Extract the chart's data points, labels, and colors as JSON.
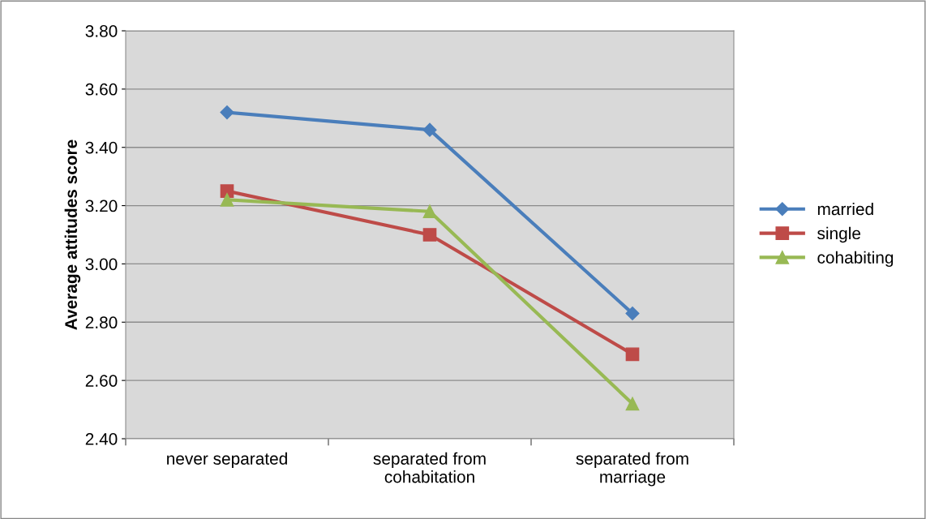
{
  "chart_data": {
    "type": "line",
    "ylabel": "Average attitudes score",
    "categories": [
      "never separated",
      "separated from\ncohabitation",
      "separated from\nmarriage"
    ],
    "series": [
      {
        "name": "married",
        "color": "#4a7ebb",
        "values": [
          3.52,
          3.46,
          2.83
        ],
        "marker": "diamond"
      },
      {
        "name": "single",
        "color": "#be4b48",
        "values": [
          3.25,
          3.1,
          2.69
        ],
        "marker": "square"
      },
      {
        "name": "cohabiting",
        "color": "#98b954",
        "values": [
          3.22,
          3.18,
          2.52
        ],
        "marker": "triangle"
      }
    ],
    "ylim": [
      2.4,
      3.8
    ],
    "yticks": [
      {
        "value": 2.4,
        "label": "2.40"
      },
      {
        "value": 2.6,
        "label": "2.60"
      },
      {
        "value": 2.8,
        "label": "2.80"
      },
      {
        "value": 3.0,
        "label": "3.00"
      },
      {
        "value": 3.2,
        "label": "3.20"
      },
      {
        "value": 3.4,
        "label": "3.40"
      },
      {
        "value": 3.6,
        "label": "3.60"
      },
      {
        "value": 3.8,
        "label": "3.80"
      }
    ],
    "grid": "y",
    "legend": "right"
  }
}
